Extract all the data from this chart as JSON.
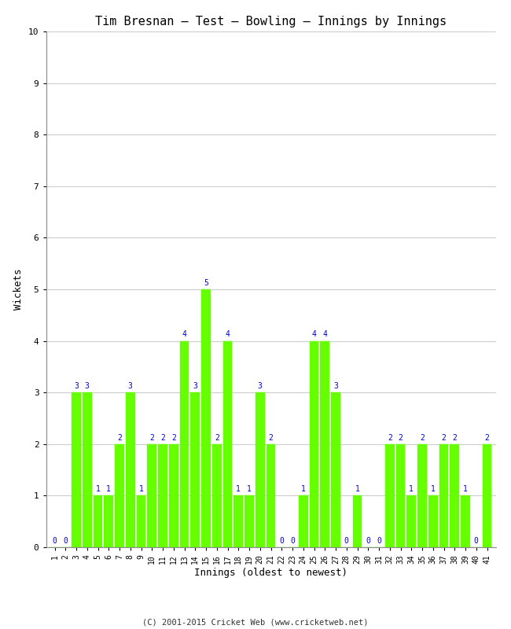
{
  "title": "Tim Bresnan – Test – Bowling – Innings by Innings",
  "xlabel": "Innings (oldest to newest)",
  "ylabel": "Wickets",
  "innings": [
    1,
    2,
    3,
    4,
    5,
    6,
    7,
    8,
    9,
    10,
    11,
    12,
    13,
    14,
    15,
    16,
    17,
    18,
    19,
    20,
    21,
    22,
    23,
    24,
    25,
    26,
    27,
    28,
    29,
    30,
    31,
    32,
    33,
    34,
    35,
    36,
    37,
    38,
    39,
    40,
    41
  ],
  "wickets": [
    0,
    0,
    3,
    3,
    1,
    1,
    2,
    3,
    1,
    2,
    2,
    2,
    4,
    3,
    5,
    2,
    4,
    1,
    1,
    3,
    2,
    0,
    0,
    1,
    4,
    4,
    3,
    0,
    1,
    0,
    0,
    2,
    2,
    1,
    2,
    1,
    2,
    2,
    1,
    0,
    2
  ],
  "bar_color": "#66ff00",
  "bar_edge_color": "#66ff00",
  "label_color": "#0000cc",
  "ylim": [
    0,
    10
  ],
  "yticks": [
    0,
    1,
    2,
    3,
    4,
    5,
    6,
    7,
    8,
    9,
    10
  ],
  "grid_color": "#cccccc",
  "background_color": "#ffffff",
  "title_fontsize": 11,
  "axis_fontsize": 9,
  "label_fontsize": 7,
  "tick_fontsize": 8,
  "footer": "(C) 2001-2015 Cricket Web (www.cricketweb.net)"
}
